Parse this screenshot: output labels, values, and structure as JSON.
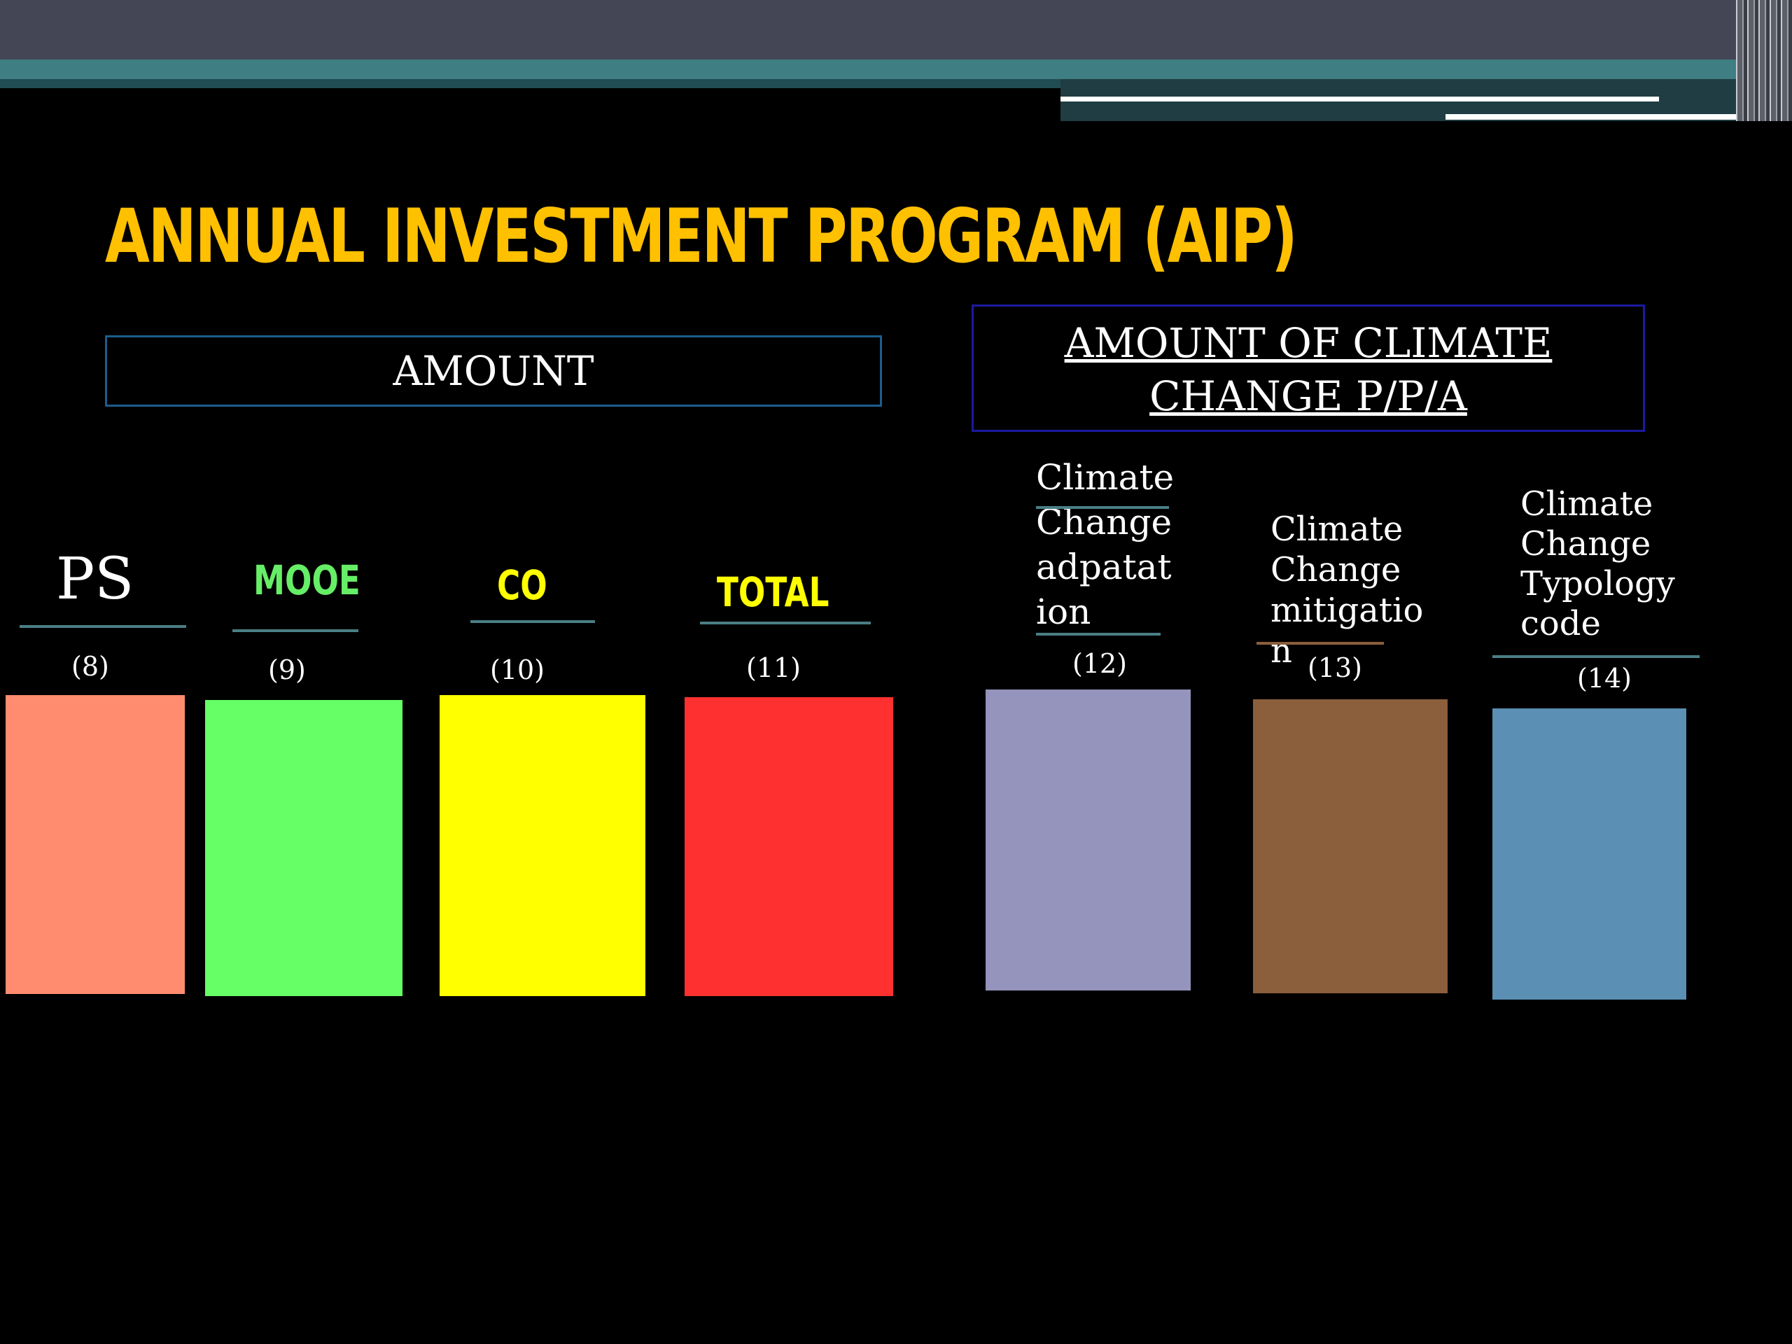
{
  "slide": {
    "title": "ANNUAL INVESTMENT PROGRAM (AIP)",
    "amount_header": "AMOUNT",
    "climate_header_line1": "AMOUNT OF CLIMATE",
    "climate_header_line2": "CHANGE P/P/A"
  },
  "columns": [
    {
      "label": "PS",
      "number": "(8)",
      "color": "#ff8c6e"
    },
    {
      "label": "MOOE",
      "number": "(9)",
      "color": "#66ff66"
    },
    {
      "label": "CO",
      "number": "(10)",
      "color": "#ffff00"
    },
    {
      "label": "TOTAL",
      "number": "(11)",
      "color": "#ff3030"
    },
    {
      "label_lines": [
        "Climate",
        "Change",
        "adpatat",
        "ion"
      ],
      "number": "(12)",
      "color": "#9494bd"
    },
    {
      "label_lines": [
        "Climate",
        "Change",
        "mitigatio",
        "n"
      ],
      "number": "(13)",
      "color": "#8b5e3c"
    },
    {
      "label_lines": [
        "Climate",
        "Change",
        "Typology",
        "code"
      ],
      "number": "(14)",
      "color": "#5b8fb3"
    }
  ],
  "theme": {
    "title_color": "#ffc000",
    "background": "#000000"
  }
}
